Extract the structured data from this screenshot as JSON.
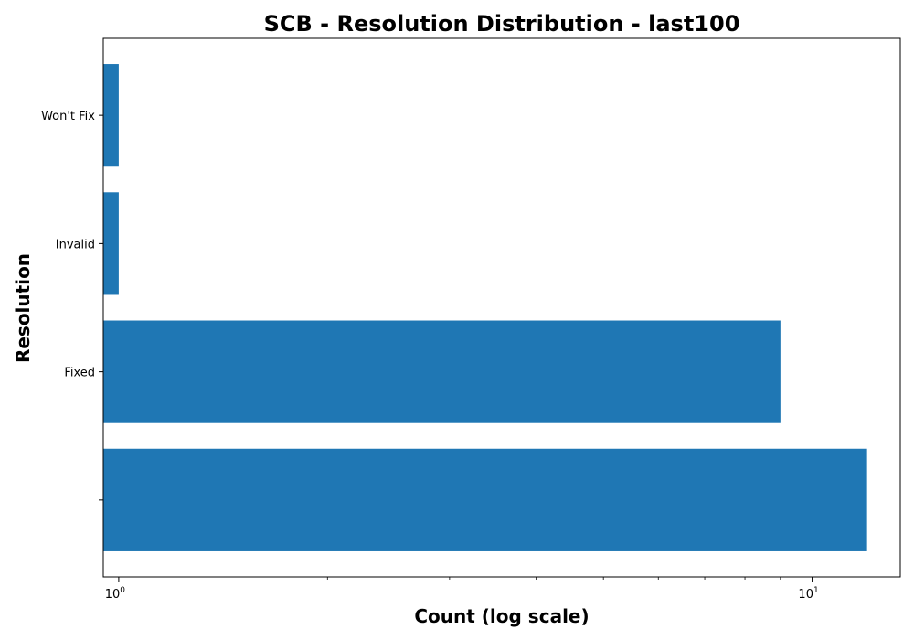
{
  "chart_data": {
    "type": "bar",
    "orientation": "horizontal",
    "title": "SCB - Resolution Distribution - last100",
    "xlabel": "Count (log scale)",
    "ylabel": "Resolution",
    "x_scale": "log",
    "xlim": [
      0.95,
      13.4
    ],
    "x_ticks": [
      {
        "base": "10",
        "exp": "0",
        "value": 1
      },
      {
        "base": "10",
        "exp": "1",
        "value": 10
      }
    ],
    "categories": [
      "",
      "Fixed",
      "Invalid",
      "Won't Fix"
    ],
    "values": [
      12,
      9,
      1,
      1
    ],
    "bar_color": "#1f77b4",
    "grid": false,
    "legend": "none"
  }
}
